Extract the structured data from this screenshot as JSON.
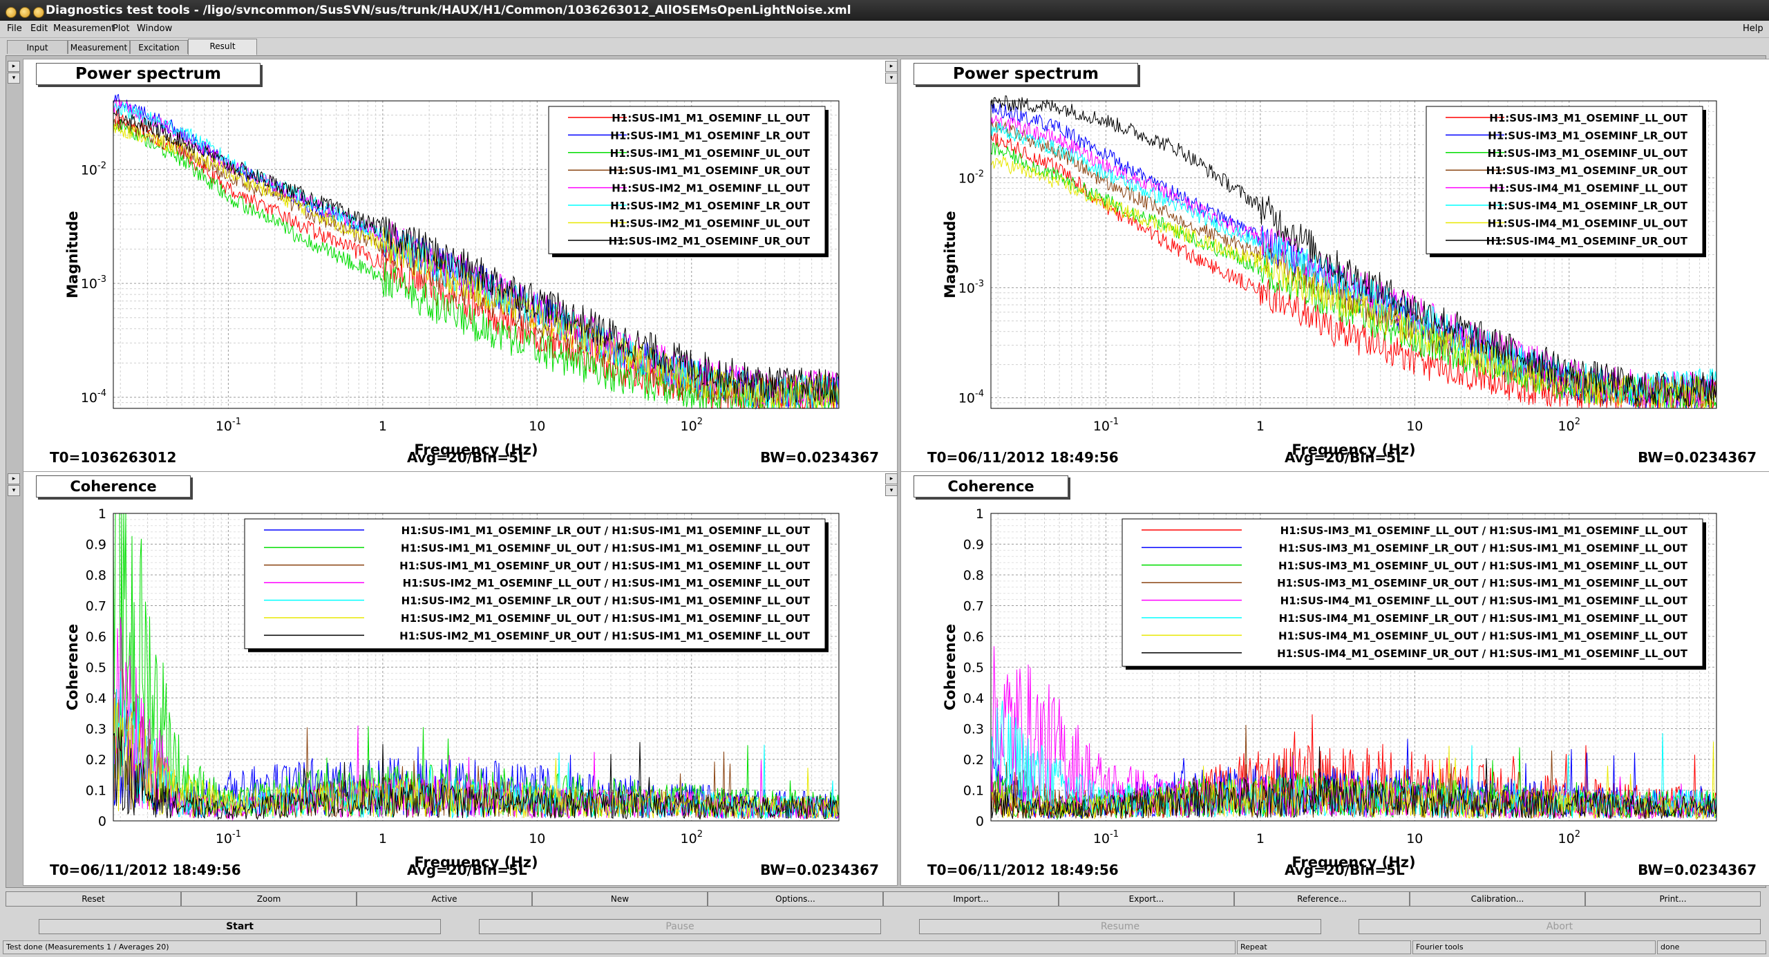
{
  "window": {
    "title": "Diagnostics test tools - /ligo/svncommon/SusSVN/sus/trunk/HAUX/H1/Common/1036263012_AllOSEMsOpenLightNoise.xml"
  },
  "menu": [
    "File",
    "Edit",
    "Measurement",
    "Plot",
    "Window"
  ],
  "help_label": "Help",
  "tabs": [
    "Input",
    "Measurement",
    "Excitation",
    "Result"
  ],
  "active_tab": "Result",
  "panel_button_glyphs": {
    "up": "▸",
    "down": "▾"
  },
  "colors": {
    "red": "#ff0000",
    "blue": "#0000ff",
    "green": "#00dd00",
    "brown": "#8b4513",
    "magenta": "#ff00ff",
    "cyan": "#00ffff",
    "yellow": "#e8e800",
    "black": "#000000"
  },
  "panels": [
    {
      "id": "tl",
      "title": "Power spectrum",
      "ylabel": "Magnitude",
      "xlabel": "Frequency (Hz)",
      "x_ticks": [
        "10^-1",
        "1",
        "10",
        "10^2"
      ],
      "y_ticks": [
        "10^-2",
        "10^-3",
        "10^-4"
      ],
      "footer": {
        "t0": "T0=1036263012",
        "avg": "Avg=20/Bin=5L",
        "bw": "BW=0.0234367"
      },
      "legend": [
        {
          "label": "H1:SUS-IM1_M1_OSEMINF_LL_OUT",
          "color": "red"
        },
        {
          "label": "H1:SUS-IM1_M1_OSEMINF_LR_OUT",
          "color": "blue"
        },
        {
          "label": "H1:SUS-IM1_M1_OSEMINF_UL_OUT",
          "color": "green"
        },
        {
          "label": "H1:SUS-IM1_M1_OSEMINF_UR_OUT",
          "color": "brown"
        },
        {
          "label": "H1:SUS-IM2_M1_OSEMINF_LL_OUT",
          "color": "magenta"
        },
        {
          "label": "H1:SUS-IM2_M1_OSEMINF_LR_OUT",
          "color": "cyan"
        },
        {
          "label": "H1:SUS-IM2_M1_OSEMINF_UL_OUT",
          "color": "yellow"
        },
        {
          "label": "H1:SUS-IM2_M1_OSEMINF_UR_OUT",
          "color": "black"
        }
      ]
    },
    {
      "id": "tr",
      "title": "Power spectrum",
      "ylabel": "Magnitude",
      "xlabel": "Frequency (Hz)",
      "x_ticks": [
        "10^-1",
        "1",
        "10",
        "10^2"
      ],
      "y_ticks": [
        "10^-2",
        "10^-3",
        "10^-4"
      ],
      "footer": {
        "t0": "T0=06/11/2012 18:49:56",
        "avg": "Avg=20/Bin=5L",
        "bw": "BW=0.0234367"
      },
      "legend": [
        {
          "label": "H1:SUS-IM3_M1_OSEMINF_LL_OUT",
          "color": "red"
        },
        {
          "label": "H1:SUS-IM3_M1_OSEMINF_LR_OUT",
          "color": "blue"
        },
        {
          "label": "H1:SUS-IM3_M1_OSEMINF_UL_OUT",
          "color": "green"
        },
        {
          "label": "H1:SUS-IM3_M1_OSEMINF_UR_OUT",
          "color": "brown"
        },
        {
          "label": "H1:SUS-IM4_M1_OSEMINF_LL_OUT",
          "color": "magenta"
        },
        {
          "label": "H1:SUS-IM4_M1_OSEMINF_LR_OUT",
          "color": "cyan"
        },
        {
          "label": "H1:SUS-IM4_M1_OSEMINF_UL_OUT",
          "color": "yellow"
        },
        {
          "label": "H1:SUS-IM4_M1_OSEMINF_UR_OUT",
          "color": "black"
        }
      ]
    },
    {
      "id": "bl",
      "title": "Coherence",
      "ylabel": "Coherence",
      "xlabel": "Frequency (Hz)",
      "x_ticks": [
        "10^-1",
        "1",
        "10",
        "10^2"
      ],
      "y_ticks": [
        "1",
        "0.9",
        "0.8",
        "0.7",
        "0.6",
        "0.5",
        "0.4",
        "0.3",
        "0.2",
        "0.1",
        "0"
      ],
      "footer": {
        "t0": "T0=06/11/2012 18:49:56",
        "avg": "Avg=20/Bin=5L",
        "bw": "BW=0.0234367"
      },
      "legend": [
        {
          "label": "H1:SUS-IM1_M1_OSEMINF_LR_OUT / H1:SUS-IM1_M1_OSEMINF_LL_OUT",
          "color": "blue"
        },
        {
          "label": "H1:SUS-IM1_M1_OSEMINF_UL_OUT / H1:SUS-IM1_M1_OSEMINF_LL_OUT",
          "color": "green"
        },
        {
          "label": "H1:SUS-IM1_M1_OSEMINF_UR_OUT / H1:SUS-IM1_M1_OSEMINF_LL_OUT",
          "color": "brown"
        },
        {
          "label": "H1:SUS-IM2_M1_OSEMINF_LL_OUT / H1:SUS-IM1_M1_OSEMINF_LL_OUT",
          "color": "magenta"
        },
        {
          "label": "H1:SUS-IM2_M1_OSEMINF_LR_OUT / H1:SUS-IM1_M1_OSEMINF_LL_OUT",
          "color": "cyan"
        },
        {
          "label": "H1:SUS-IM2_M1_OSEMINF_UL_OUT / H1:SUS-IM1_M1_OSEMINF_LL_OUT",
          "color": "yellow"
        },
        {
          "label": "H1:SUS-IM2_M1_OSEMINF_UR_OUT / H1:SUS-IM1_M1_OSEMINF_LL_OUT",
          "color": "black"
        }
      ]
    },
    {
      "id": "br",
      "title": "Coherence",
      "ylabel": "Coherence",
      "xlabel": "Frequency (Hz)",
      "x_ticks": [
        "10^-1",
        "1",
        "10",
        "10^2"
      ],
      "y_ticks": [
        "1",
        "0.9",
        "0.8",
        "0.7",
        "0.6",
        "0.5",
        "0.4",
        "0.3",
        "0.2",
        "0.1",
        "0"
      ],
      "footer": {
        "t0": "T0=06/11/2012 18:49:56",
        "avg": "Avg=20/Bin=5L",
        "bw": "BW=0.0234367"
      },
      "legend": [
        {
          "label": "H1:SUS-IM3_M1_OSEMINF_LL_OUT / H1:SUS-IM1_M1_OSEMINF_LL_OUT",
          "color": "red"
        },
        {
          "label": "H1:SUS-IM3_M1_OSEMINF_LR_OUT / H1:SUS-IM1_M1_OSEMINF_LL_OUT",
          "color": "blue"
        },
        {
          "label": "H1:SUS-IM3_M1_OSEMINF_UL_OUT / H1:SUS-IM1_M1_OSEMINF_LL_OUT",
          "color": "green"
        },
        {
          "label": "H1:SUS-IM3_M1_OSEMINF_UR_OUT / H1:SUS-IM1_M1_OSEMINF_LL_OUT",
          "color": "brown"
        },
        {
          "label": "H1:SUS-IM4_M1_OSEMINF_LL_OUT / H1:SUS-IM1_M1_OSEMINF_LL_OUT",
          "color": "magenta"
        },
        {
          "label": "H1:SUS-IM4_M1_OSEMINF_LR_OUT / H1:SUS-IM1_M1_OSEMINF_LL_OUT",
          "color": "cyan"
        },
        {
          "label": "H1:SUS-IM4_M1_OSEMINF_UL_OUT / H1:SUS-IM1_M1_OSEMINF_LL_OUT",
          "color": "yellow"
        },
        {
          "label": "H1:SUS-IM4_M1_OSEMINF_UR_OUT / H1:SUS-IM1_M1_OSEMINF_LL_OUT",
          "color": "black"
        }
      ]
    }
  ],
  "chart_data": [
    {
      "type": "line",
      "title": "Power spectrum",
      "xlabel": "Frequency (Hz)",
      "ylabel": "Magnitude",
      "x_scale": "log",
      "y_scale": "log",
      "xlim": [
        0.018,
        900
      ],
      "ylim": [
        8e-05,
        0.04
      ],
      "grid": true,
      "legend": "top-right",
      "x": [
        0.02,
        0.05,
        0.1,
        0.3,
        1,
        3,
        10,
        30,
        100,
        300,
        800
      ],
      "series": [
        {
          "name": "H1:SUS-IM1_M1_OSEMINF_LL_OUT",
          "values": [
            0.028,
            0.014,
            0.0068,
            0.0032,
            0.0015,
            0.00072,
            0.00036,
            0.00019,
            0.00012,
            0.000105,
            0.000105
          ]
        },
        {
          "name": "H1:SUS-IM1_M1_OSEMINF_LR_OUT",
          "values": [
            0.04,
            0.021,
            0.011,
            0.0052,
            0.0025,
            0.0013,
            0.00058,
            0.00028,
            0.00015,
            0.00011,
            0.00011
          ]
        },
        {
          "name": "H1:SUS-IM1_M1_OSEMINF_UL_OUT",
          "values": [
            0.025,
            0.012,
            0.0058,
            0.0025,
            0.0011,
            0.00052,
            0.00027,
            0.00016,
            0.00011,
            0.0001,
            0.0001
          ]
        },
        {
          "name": "H1:SUS-IM1_M1_OSEMINF_UR_OUT",
          "values": [
            0.026,
            0.015,
            0.009,
            0.0045,
            0.0021,
            0.001,
            0.00048,
            0.00025,
            0.00014,
            0.00011,
            0.00011
          ]
        },
        {
          "name": "H1:SUS-IM2_M1_OSEMINF_LL_OUT",
          "values": [
            0.036,
            0.02,
            0.011,
            0.0055,
            0.0027,
            0.0013,
            0.0006,
            0.0003,
            0.00016,
            0.00012,
            0.00012
          ]
        },
        {
          "name": "H1:SUS-IM2_M1_OSEMINF_LR_OUT",
          "values": [
            0.034,
            0.022,
            0.012,
            0.0056,
            0.0026,
            0.0012,
            0.00056,
            0.00028,
            0.00015,
            0.00011,
            0.00011
          ]
        },
        {
          "name": "H1:SUS-IM2_M1_OSEMINF_UL_OUT",
          "values": [
            0.023,
            0.015,
            0.0095,
            0.0047,
            0.0022,
            0.0011,
            0.00052,
            0.00027,
            0.00014,
            0.00011,
            0.00011
          ]
        },
        {
          "name": "H1:SUS-IM2_M1_OSEMINF_UR_OUT",
          "values": [
            0.03,
            0.018,
            0.011,
            0.006,
            0.003,
            0.0015,
            0.0007,
            0.00035,
            0.00019,
            0.00013,
            0.000125
          ]
        }
      ]
    },
    {
      "type": "line",
      "title": "Power spectrum",
      "xlabel": "Frequency (Hz)",
      "ylabel": "Magnitude",
      "x_scale": "log",
      "y_scale": "log",
      "xlim": [
        0.018,
        900
      ],
      "ylim": [
        8e-05,
        0.05
      ],
      "grid": true,
      "legend": "top-right",
      "x": [
        0.02,
        0.05,
        0.1,
        0.3,
        1,
        3,
        10,
        30,
        100,
        300,
        800
      ],
      "series": [
        {
          "name": "H1:SUS-IM3_M1_OSEMINF_LL_OUT",
          "values": [
            0.022,
            0.012,
            0.0055,
            0.0022,
            0.00095,
            0.00042,
            0.00022,
            0.00014,
            0.00011,
            0.0001,
            0.0001
          ]
        },
        {
          "name": "H1:SUS-IM3_M1_OSEMINF_LR_OUT",
          "values": [
            0.042,
            0.028,
            0.016,
            0.0068,
            0.0028,
            0.0011,
            0.0005,
            0.00025,
            0.00014,
            0.00011,
            0.00011
          ]
        },
        {
          "name": "H1:SUS-IM3_M1_OSEMINF_UL_OUT",
          "values": [
            0.018,
            0.01,
            0.0062,
            0.0032,
            0.0015,
            0.00072,
            0.00035,
            0.0002,
            0.00013,
            0.00011,
            0.00011
          ]
        },
        {
          "name": "H1:SUS-IM3_M1_OSEMINF_UR_OUT",
          "values": [
            0.03,
            0.017,
            0.009,
            0.0042,
            0.002,
            0.0009,
            0.00042,
            0.00022,
            0.00013,
            0.00011,
            0.00011
          ]
        },
        {
          "name": "H1:SUS-IM4_M1_OSEMINF_LL_OUT",
          "values": [
            0.033,
            0.022,
            0.013,
            0.0062,
            0.0028,
            0.0013,
            0.0006,
            0.0003,
            0.00016,
            0.00012,
            0.00012
          ]
        },
        {
          "name": "H1:SUS-IM4_M1_OSEMINF_LR_OUT",
          "values": [
            0.028,
            0.018,
            0.011,
            0.0055,
            0.0025,
            0.0012,
            0.00055,
            0.00028,
            0.00015,
            0.00012,
            0.00013
          ]
        },
        {
          "name": "H1:SUS-IM4_M1_OSEMINF_UL_OUT",
          "values": [
            0.014,
            0.009,
            0.0058,
            0.0032,
            0.0017,
            0.0008,
            0.0004,
            0.00022,
            0.00013,
            0.00011,
            0.00011
          ]
        },
        {
          "name": "H1:SUS-IM4_M1_OSEMINF_UR_OUT",
          "values": [
            0.048,
            0.044,
            0.033,
            0.018,
            0.0055,
            0.0016,
            0.00065,
            0.00032,
            0.00017,
            0.00012,
            0.00012
          ]
        }
      ]
    },
    {
      "type": "line",
      "title": "Coherence",
      "xlabel": "Frequency (Hz)",
      "ylabel": "Coherence",
      "x_scale": "log",
      "xlim": [
        0.018,
        900
      ],
      "ylim": [
        0,
        1
      ],
      "grid": true,
      "legend": "top-right",
      "x": [
        0.02,
        0.03,
        0.05,
        0.1,
        0.3,
        1,
        3,
        10,
        30,
        100,
        300,
        800
      ],
      "series": [
        {
          "name": "H1:SUS-IM1_M1_OSEMINF_LR_OUT / H1:SUS-IM1_M1_OSEMINF_LL_OUT",
          "values": [
            0.2,
            0.12,
            0.05,
            0.08,
            0.1,
            0.1,
            0.1,
            0.09,
            0.07,
            0.06,
            0.05,
            0.05
          ]
        },
        {
          "name": "H1:SUS-IM1_M1_OSEMINF_UL_OUT / H1:SUS-IM1_M1_OSEMINF_LL_OUT",
          "values": [
            0.68,
            0.4,
            0.12,
            0.05,
            0.08,
            0.09,
            0.09,
            0.08,
            0.07,
            0.06,
            0.05,
            0.05
          ]
        },
        {
          "name": "H1:SUS-IM1_M1_OSEMINF_UR_OUT / H1:SUS-IM1_M1_OSEMINF_LL_OUT",
          "values": [
            0.25,
            0.15,
            0.06,
            0.04,
            0.06,
            0.07,
            0.07,
            0.06,
            0.05,
            0.05,
            0.04,
            0.04
          ]
        },
        {
          "name": "H1:SUS-IM2_M1_OSEMINF_LL_OUT / H1:SUS-IM1_M1_OSEMINF_LL_OUT",
          "values": [
            0.36,
            0.2,
            0.05,
            0.03,
            0.06,
            0.07,
            0.07,
            0.06,
            0.05,
            0.05,
            0.04,
            0.04
          ]
        },
        {
          "name": "H1:SUS-IM2_M1_OSEMINF_LR_OUT / H1:SUS-IM1_M1_OSEMINF_LL_OUT",
          "values": [
            0.26,
            0.16,
            0.05,
            0.04,
            0.06,
            0.07,
            0.07,
            0.06,
            0.05,
            0.05,
            0.04,
            0.04
          ]
        },
        {
          "name": "H1:SUS-IM2_M1_OSEMINF_UL_OUT / H1:SUS-IM1_M1_OSEMINF_LL_OUT",
          "values": [
            0.2,
            0.15,
            0.08,
            0.05,
            0.06,
            0.07,
            0.07,
            0.06,
            0.05,
            0.05,
            0.04,
            0.04
          ]
        },
        {
          "name": "H1:SUS-IM2_M1_OSEMINF_UR_OUT / H1:SUS-IM1_M1_OSEMINF_LL_OUT",
          "values": [
            0.15,
            0.08,
            0.04,
            0.03,
            0.05,
            0.06,
            0.06,
            0.05,
            0.05,
            0.04,
            0.04,
            0.04
          ]
        }
      ]
    },
    {
      "type": "line",
      "title": "Coherence",
      "xlabel": "Frequency (Hz)",
      "ylabel": "Coherence",
      "x_scale": "log",
      "xlim": [
        0.018,
        900
      ],
      "ylim": [
        0,
        1
      ],
      "grid": true,
      "legend": "top-right",
      "x": [
        0.02,
        0.03,
        0.05,
        0.1,
        0.3,
        1,
        3,
        10,
        30,
        100,
        300,
        800
      ],
      "series": [
        {
          "name": "H1:SUS-IM3_M1_OSEMINF_LL_OUT / H1:SUS-IM1_M1_OSEMINF_LL_OUT",
          "values": [
            0.05,
            0.04,
            0.05,
            0.05,
            0.06,
            0.12,
            0.12,
            0.11,
            0.09,
            0.07,
            0.06,
            0.05
          ]
        },
        {
          "name": "H1:SUS-IM3_M1_OSEMINF_LR_OUT / H1:SUS-IM1_M1_OSEMINF_LL_OUT",
          "values": [
            0.1,
            0.06,
            0.04,
            0.05,
            0.08,
            0.09,
            0.09,
            0.08,
            0.07,
            0.06,
            0.05,
            0.05
          ]
        },
        {
          "name": "H1:SUS-IM3_M1_OSEMINF_UL_OUT / H1:SUS-IM1_M1_OSEMINF_LL_OUT",
          "values": [
            0.08,
            0.05,
            0.04,
            0.05,
            0.07,
            0.08,
            0.08,
            0.07,
            0.06,
            0.05,
            0.05,
            0.05
          ]
        },
        {
          "name": "H1:SUS-IM3_M1_OSEMINF_UR_OUT / H1:SUS-IM1_M1_OSEMINF_LL_OUT",
          "values": [
            0.1,
            0.08,
            0.05,
            0.04,
            0.06,
            0.07,
            0.07,
            0.06,
            0.05,
            0.05,
            0.04,
            0.04
          ]
        },
        {
          "name": "H1:SUS-IM4_M1_OSEMINF_LL_OUT / H1:SUS-IM1_M1_OSEMINF_LL_OUT",
          "values": [
            0.28,
            0.26,
            0.2,
            0.1,
            0.07,
            0.07,
            0.07,
            0.06,
            0.05,
            0.05,
            0.04,
            0.04
          ]
        },
        {
          "name": "H1:SUS-IM4_M1_OSEMINF_LR_OUT / H1:SUS-IM1_M1_OSEMINF_LL_OUT",
          "values": [
            0.2,
            0.15,
            0.1,
            0.06,
            0.06,
            0.07,
            0.07,
            0.06,
            0.05,
            0.05,
            0.05,
            0.05
          ]
        },
        {
          "name": "H1:SUS-IM4_M1_OSEMINF_UL_OUT / H1:SUS-IM1_M1_OSEMINF_LL_OUT",
          "values": [
            0.06,
            0.04,
            0.03,
            0.04,
            0.06,
            0.07,
            0.07,
            0.06,
            0.05,
            0.05,
            0.04,
            0.04
          ]
        },
        {
          "name": "H1:SUS-IM4_M1_OSEMINF_UR_OUT / H1:SUS-IM1_M1_OSEMINF_LL_OUT",
          "values": [
            0.05,
            0.04,
            0.03,
            0.04,
            0.06,
            0.07,
            0.07,
            0.06,
            0.05,
            0.05,
            0.04,
            0.04
          ]
        }
      ]
    }
  ],
  "commands": [
    "Reset",
    "Zoom",
    "Active",
    "New",
    "Options...",
    "Import...",
    "Export...",
    "Reference...",
    "Calibration...",
    "Print..."
  ],
  "run_buttons": [
    {
      "label": "Start",
      "enabled": true
    },
    {
      "label": "Pause",
      "enabled": false
    },
    {
      "label": "Resume",
      "enabled": false
    },
    {
      "label": "Abort",
      "enabled": false
    }
  ],
  "status": {
    "message": "Test done (Measurements 1 / Averages 20)",
    "mode": "Repeat",
    "tool": "Fourier tools",
    "state": "done"
  }
}
